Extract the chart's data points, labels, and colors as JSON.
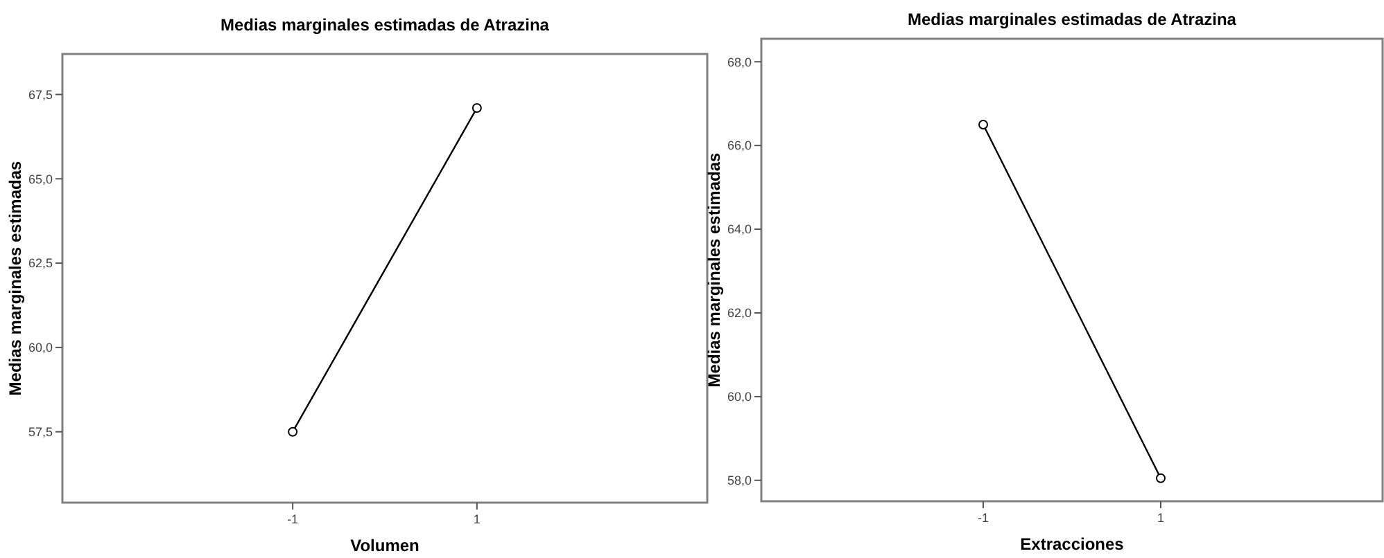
{
  "chart_data": [
    {
      "type": "line",
      "title": "Medias marginales estimadas de Atrazina",
      "xlabel": "Volumen",
      "ylabel": "Medias marginales estimadas",
      "categories": [
        "-1",
        "1"
      ],
      "values": [
        57.5,
        67.1
      ],
      "color": "#000000",
      "ylim": [
        55.4,
        68.7
      ],
      "yticks": [
        {
          "value": 57.5,
          "label": "57,5"
        },
        {
          "value": 60,
          "label": "60,0"
        },
        {
          "value": 62.5,
          "label": "62,5"
        },
        {
          "value": 65,
          "label": "65,0"
        },
        {
          "value": 67.5,
          "label": "67,5"
        }
      ],
      "marker": "circle",
      "grid": false
    },
    {
      "type": "line",
      "title": "Medias marginales estimadas de  Atrazina",
      "xlabel": "Extracciones",
      "ylabel": "Medias marginales estimadas",
      "categories": [
        "-1",
        "1"
      ],
      "values": [
        66.5,
        58.05
      ],
      "color": "#000000",
      "ylim": [
        57.5,
        68.55
      ],
      "yticks": [
        {
          "value": 58,
          "label": "58,0"
        },
        {
          "value": 60,
          "label": "60,0"
        },
        {
          "value": 62,
          "label": "62,0"
        },
        {
          "value": 64,
          "label": "64,0"
        },
        {
          "value": 66,
          "label": "66,0"
        },
        {
          "value": 68,
          "label": "68,0"
        }
      ],
      "marker": "circle",
      "grid": false
    }
  ]
}
